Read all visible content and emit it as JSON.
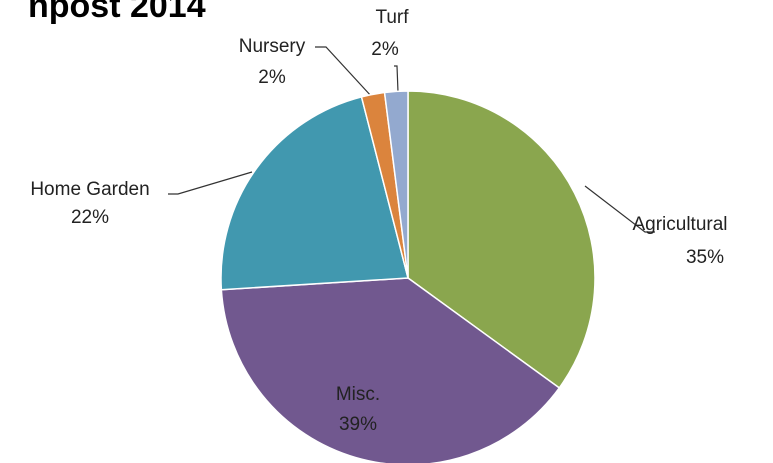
{
  "chart_data": {
    "type": "pie",
    "title": "npost 2014",
    "categories": [
      "Agricultural",
      "Misc.",
      "Home Garden",
      "Nursery",
      "Turf"
    ],
    "values": [
      35,
      39,
      22,
      2,
      2
    ],
    "value_labels": [
      "35%",
      "39%",
      "22%",
      "2%",
      "2%"
    ],
    "colors": [
      "#8aa64e",
      "#71588f",
      "#4198af",
      "#db843d",
      "#93a9cf"
    ]
  }
}
